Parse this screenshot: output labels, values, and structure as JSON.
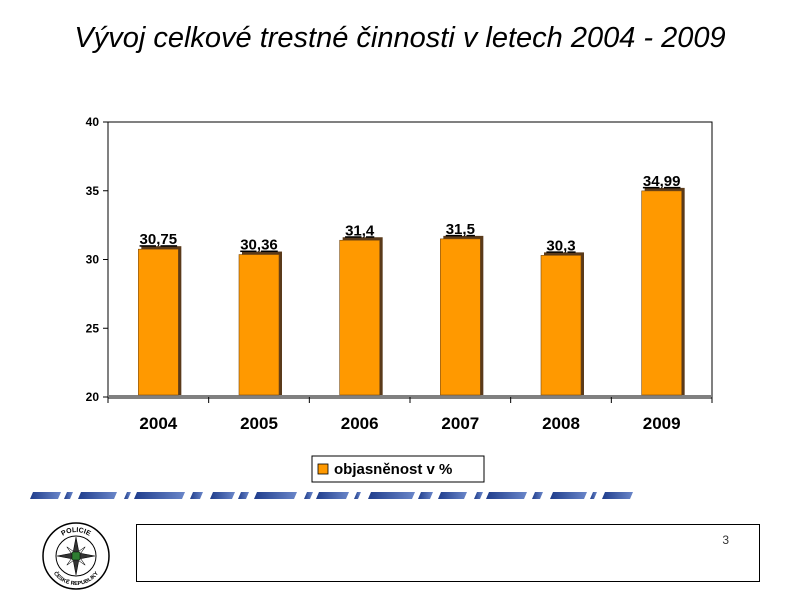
{
  "slide": {
    "title": "Vývoj celkové trestné činnosti v letech 2004 - 2009",
    "page_number": "3"
  },
  "logo": {
    "text_top": "POLICIE",
    "text_bottom": "ČESKÉ REPUBLIKY"
  },
  "colors": {
    "bar_fill": "#FF9900",
    "bar_shadow": "#5a3a1a",
    "axis": "#808080",
    "plot_border": "#000000"
  },
  "chart_data": {
    "type": "bar",
    "title": "",
    "categories": [
      "2004",
      "2005",
      "2006",
      "2007",
      "2008",
      "2009"
    ],
    "series": [
      {
        "name": "objasněnost v %",
        "values": [
          30.75,
          30.36,
          31.4,
          31.5,
          30.3,
          34.99
        ],
        "data_labels": [
          "30,75",
          "30,36",
          "31,4",
          "31,5",
          "30,3",
          "34,99"
        ]
      }
    ],
    "ylim": [
      20,
      40
    ],
    "yticks": [
      "20",
      "25",
      "30",
      "35",
      "40"
    ],
    "grid": false,
    "legend_position": "bottom"
  }
}
